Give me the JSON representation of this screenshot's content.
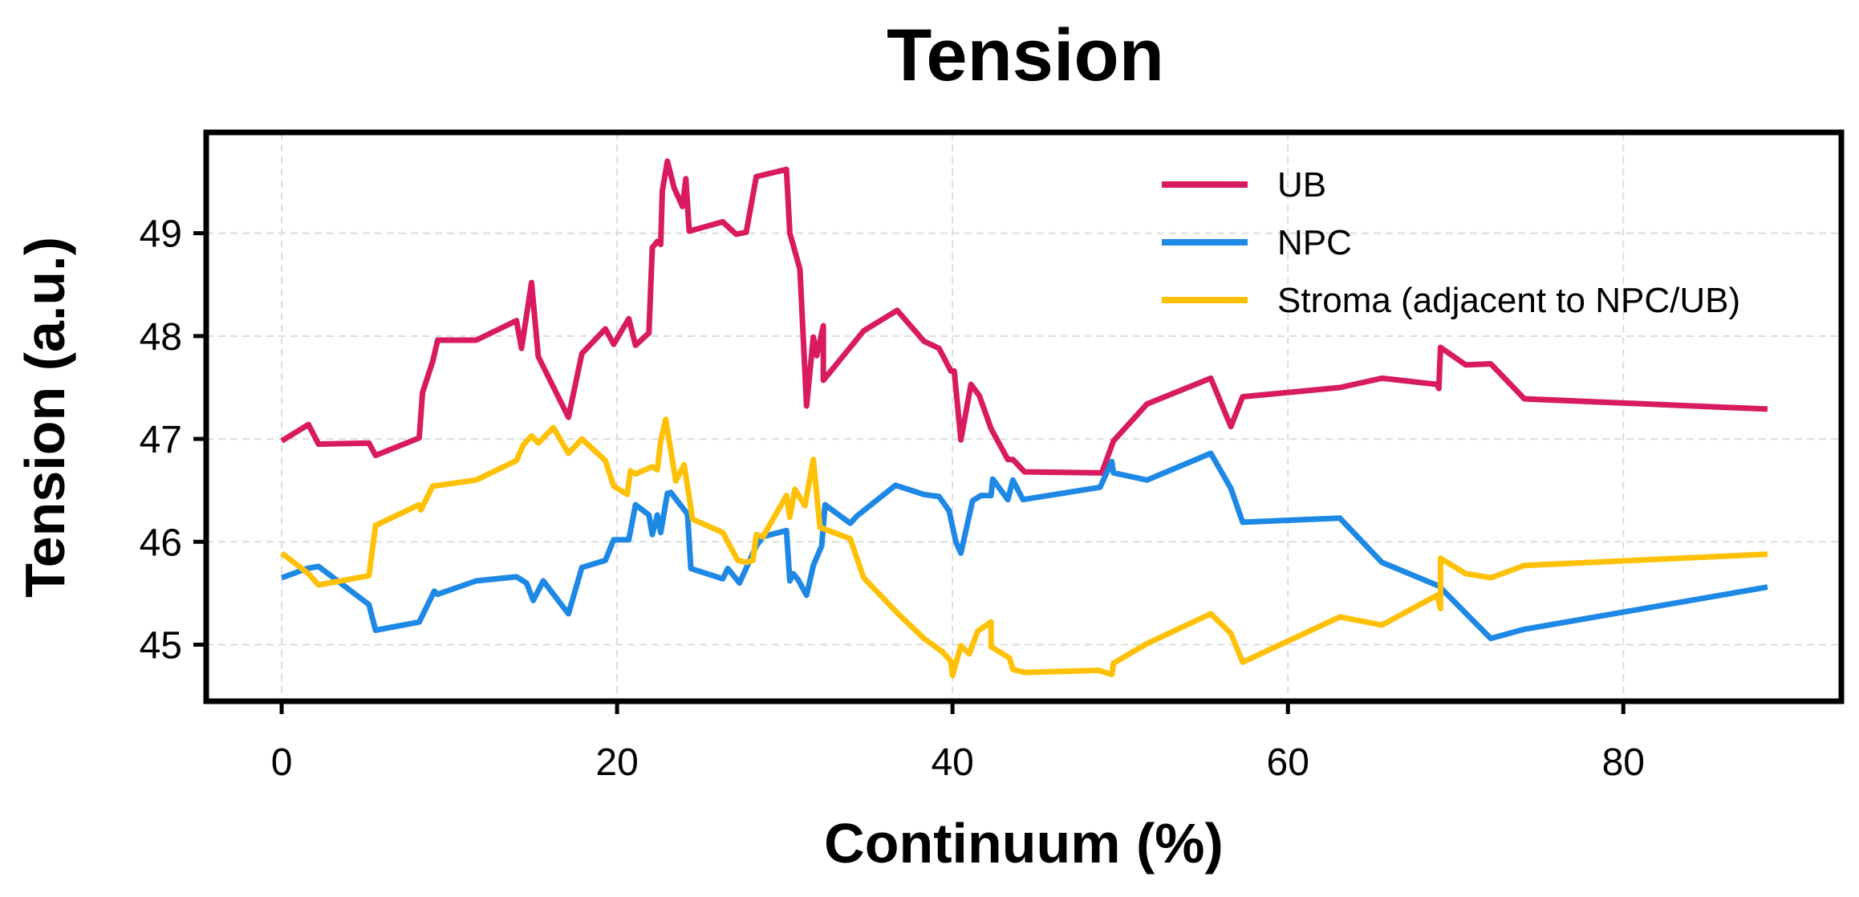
{
  "chart_data": {
    "type": "line",
    "title": "Tension",
    "xlabel": "Continuum (%)",
    "ylabel": "Tension (a.u.)",
    "xlim": [
      -4.5,
      93
    ],
    "ylim": [
      44.45,
      49.98
    ],
    "xticks": [
      0,
      20,
      40,
      60,
      80
    ],
    "yticks": [
      45,
      46,
      47,
      48,
      49
    ],
    "xtick_labels": [
      "0",
      "20",
      "40",
      "60",
      "80"
    ],
    "ytick_labels": [
      "45",
      "46",
      "47",
      "48",
      "49"
    ],
    "grid": true,
    "legend_position": "top-right",
    "series": [
      {
        "name": "UB",
        "color": "#d81b60",
        "points": [
          [
            0,
            46.98
          ],
          [
            1.6,
            47.14
          ],
          [
            2.2,
            46.95
          ],
          [
            5.2,
            46.96
          ],
          [
            5.6,
            46.84
          ],
          [
            8.2,
            47.01
          ],
          [
            8.4,
            47.45
          ],
          [
            9.0,
            47.75
          ],
          [
            9.3,
            47.96
          ],
          [
            11.6,
            47.96
          ],
          [
            14.0,
            48.15
          ],
          [
            14.3,
            47.88
          ],
          [
            14.9,
            48.52
          ],
          [
            15.3,
            47.8
          ],
          [
            17.1,
            47.21
          ],
          [
            17.9,
            47.83
          ],
          [
            19.3,
            48.07
          ],
          [
            19.8,
            47.92
          ],
          [
            20.7,
            48.17
          ],
          [
            21.1,
            47.91
          ],
          [
            21.9,
            48.03
          ],
          [
            22.1,
            48.86
          ],
          [
            22.4,
            48.92
          ],
          [
            22.6,
            48.89
          ],
          [
            22.7,
            49.41
          ],
          [
            23.0,
            49.7
          ],
          [
            23.4,
            49.44
          ],
          [
            23.9,
            49.26
          ],
          [
            24.1,
            49.53
          ],
          [
            24.3,
            49.02
          ],
          [
            26.3,
            49.11
          ],
          [
            27.1,
            48.99
          ],
          [
            27.7,
            49.01
          ],
          [
            28.3,
            49.55
          ],
          [
            30.1,
            49.62
          ],
          [
            30.3,
            49.0
          ],
          [
            30.9,
            48.65
          ],
          [
            31.3,
            47.32
          ],
          [
            31.7,
            47.99
          ],
          [
            31.9,
            47.81
          ],
          [
            32.3,
            48.1
          ],
          [
            32.3,
            47.57
          ],
          [
            34.7,
            48.05
          ],
          [
            36.7,
            48.25
          ],
          [
            38.3,
            47.95
          ],
          [
            39.2,
            47.88
          ],
          [
            39.9,
            47.66
          ],
          [
            40.1,
            47.66
          ],
          [
            40.5,
            46.99
          ],
          [
            41.1,
            47.53
          ],
          [
            41.6,
            47.42
          ],
          [
            42.3,
            47.1
          ],
          [
            42.8,
            46.95
          ],
          [
            43.3,
            46.8
          ],
          [
            43.6,
            46.8
          ],
          [
            44.3,
            46.68
          ],
          [
            48.9,
            46.67
          ],
          [
            49.6,
            46.98
          ],
          [
            51.6,
            47.34
          ],
          [
            55.4,
            47.59
          ],
          [
            56.6,
            47.12
          ],
          [
            57.3,
            47.41
          ],
          [
            63.1,
            47.5
          ],
          [
            65.6,
            47.59
          ],
          [
            68.9,
            47.53
          ],
          [
            69.0,
            47.49
          ],
          [
            69.1,
            47.89
          ],
          [
            70.6,
            47.72
          ],
          [
            72.1,
            47.73
          ],
          [
            74.1,
            47.39
          ],
          [
            88.6,
            47.29
          ]
        ]
      },
      {
        "name": "NPC",
        "color": "#1e88e5",
        "points": [
          [
            0,
            45.65
          ],
          [
            1.5,
            45.74
          ],
          [
            2.2,
            45.76
          ],
          [
            5.2,
            45.39
          ],
          [
            5.6,
            45.14
          ],
          [
            8.2,
            45.22
          ],
          [
            9.1,
            45.52
          ],
          [
            9.3,
            45.49
          ],
          [
            11.6,
            45.62
          ],
          [
            14.0,
            45.66
          ],
          [
            14.6,
            45.6
          ],
          [
            15.0,
            45.43
          ],
          [
            15.6,
            45.62
          ],
          [
            17.1,
            45.3
          ],
          [
            17.9,
            45.75
          ],
          [
            19.3,
            45.82
          ],
          [
            19.8,
            46.02
          ],
          [
            20.7,
            46.02
          ],
          [
            21.1,
            46.36
          ],
          [
            21.9,
            46.26
          ],
          [
            22.1,
            46.07
          ],
          [
            22.4,
            46.26
          ],
          [
            22.6,
            46.09
          ],
          [
            23.0,
            46.47
          ],
          [
            23.2,
            46.48
          ],
          [
            24.2,
            46.27
          ],
          [
            24.4,
            45.74
          ],
          [
            26.3,
            45.64
          ],
          [
            26.6,
            45.74
          ],
          [
            27.3,
            45.6
          ],
          [
            28.3,
            45.96
          ],
          [
            28.7,
            46.05
          ],
          [
            30.1,
            46.11
          ],
          [
            30.3,
            45.62
          ],
          [
            30.5,
            45.69
          ],
          [
            30.8,
            45.63
          ],
          [
            31.3,
            45.48
          ],
          [
            31.7,
            45.77
          ],
          [
            32.2,
            45.96
          ],
          [
            32.4,
            46.36
          ],
          [
            33.9,
            46.18
          ],
          [
            34.3,
            46.25
          ],
          [
            36.6,
            46.55
          ],
          [
            38.3,
            46.46
          ],
          [
            39.2,
            46.44
          ],
          [
            39.8,
            46.3
          ],
          [
            40.2,
            46.0
          ],
          [
            40.5,
            45.89
          ],
          [
            41.2,
            46.4
          ],
          [
            41.7,
            46.45
          ],
          [
            42.3,
            46.45
          ],
          [
            42.4,
            46.61
          ],
          [
            43.3,
            46.41
          ],
          [
            43.6,
            46.6
          ],
          [
            44.2,
            46.41
          ],
          [
            48.8,
            46.53
          ],
          [
            49.5,
            46.78
          ],
          [
            49.6,
            46.67
          ],
          [
            51.6,
            46.6
          ],
          [
            55.4,
            46.86
          ],
          [
            56.6,
            46.52
          ],
          [
            57.3,
            46.19
          ],
          [
            63.1,
            46.23
          ],
          [
            65.6,
            45.8
          ],
          [
            69.0,
            45.57
          ],
          [
            72.1,
            45.06
          ],
          [
            74.1,
            45.15
          ],
          [
            88.6,
            45.56
          ]
        ]
      },
      {
        "name": "Stroma (adjacent to NPC/UB)",
        "color": "#ffc107",
        "points": [
          [
            0,
            45.89
          ],
          [
            1.6,
            45.69
          ],
          [
            2.2,
            45.58
          ],
          [
            5.2,
            45.67
          ],
          [
            5.6,
            46.16
          ],
          [
            8.2,
            46.36
          ],
          [
            8.3,
            46.31
          ],
          [
            9.0,
            46.54
          ],
          [
            11.6,
            46.6
          ],
          [
            14.0,
            46.79
          ],
          [
            14.4,
            46.94
          ],
          [
            14.9,
            47.03
          ],
          [
            15.3,
            46.96
          ],
          [
            16.2,
            47.11
          ],
          [
            17.1,
            46.86
          ],
          [
            17.9,
            47.0
          ],
          [
            19.3,
            46.79
          ],
          [
            19.8,
            46.54
          ],
          [
            20.6,
            46.46
          ],
          [
            20.8,
            46.69
          ],
          [
            21.1,
            46.66
          ],
          [
            22.1,
            46.73
          ],
          [
            22.4,
            46.7
          ],
          [
            22.6,
            46.98
          ],
          [
            22.9,
            47.19
          ],
          [
            23.5,
            46.59
          ],
          [
            24.0,
            46.75
          ],
          [
            24.5,
            46.22
          ],
          [
            26.3,
            46.09
          ],
          [
            27.2,
            45.82
          ],
          [
            27.7,
            45.8
          ],
          [
            28.1,
            45.82
          ],
          [
            28.3,
            46.07
          ],
          [
            28.7,
            46.05
          ],
          [
            30.1,
            46.45
          ],
          [
            30.3,
            46.24
          ],
          [
            30.6,
            46.51
          ],
          [
            31.2,
            46.35
          ],
          [
            31.7,
            46.8
          ],
          [
            32.1,
            46.14
          ],
          [
            33.9,
            46.03
          ],
          [
            34.7,
            45.65
          ],
          [
            36.7,
            45.31
          ],
          [
            38.3,
            45.06
          ],
          [
            39.4,
            44.93
          ],
          [
            39.9,
            44.84
          ],
          [
            40.0,
            44.7
          ],
          [
            40.5,
            44.99
          ],
          [
            41.0,
            44.91
          ],
          [
            41.5,
            45.13
          ],
          [
            42.3,
            45.22
          ],
          [
            42.3,
            44.98
          ],
          [
            43.4,
            44.87
          ],
          [
            43.6,
            44.76
          ],
          [
            44.3,
            44.73
          ],
          [
            48.7,
            44.75
          ],
          [
            49.5,
            44.71
          ],
          [
            49.6,
            44.82
          ],
          [
            51.6,
            45.01
          ],
          [
            55.4,
            45.3
          ],
          [
            56.6,
            45.11
          ],
          [
            57.3,
            44.83
          ],
          [
            63.1,
            45.27
          ],
          [
            65.6,
            45.19
          ],
          [
            68.9,
            45.48
          ],
          [
            69.1,
            45.35
          ],
          [
            69.1,
            45.84
          ],
          [
            70.6,
            45.69
          ],
          [
            72.1,
            45.65
          ],
          [
            74.1,
            45.77
          ],
          [
            88.6,
            45.88
          ]
        ]
      }
    ]
  }
}
